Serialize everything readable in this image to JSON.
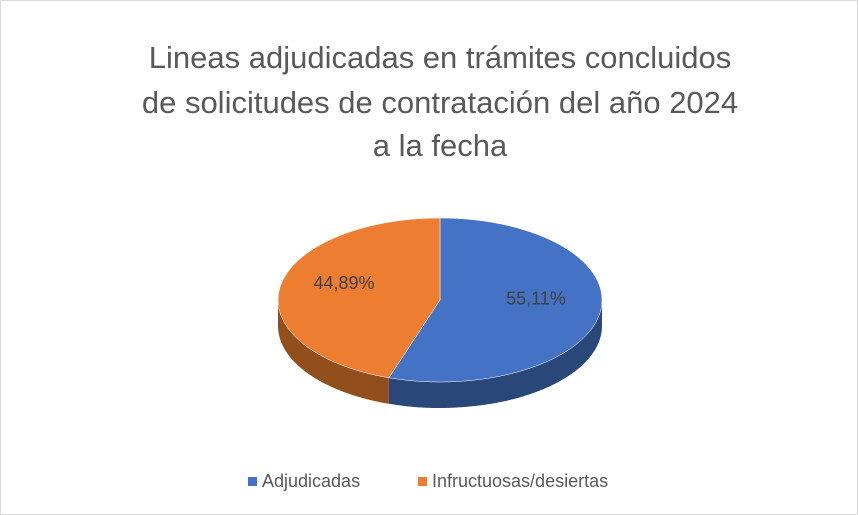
{
  "chart_data": {
    "type": "pie",
    "title": [
      "Lineas adjudicadas en trámites concluidos",
      "de solicitudes de contratación  del año 2024",
      "a la fecha"
    ],
    "categories": [
      "Adjudicadas",
      "Infructuosas/desiertas"
    ],
    "values": [
      55.11,
      44.89
    ],
    "value_labels": [
      "55,11%",
      "44,89%"
    ],
    "colors": [
      "#4472c4",
      "#ed7d31"
    ],
    "legend": "bottom"
  }
}
